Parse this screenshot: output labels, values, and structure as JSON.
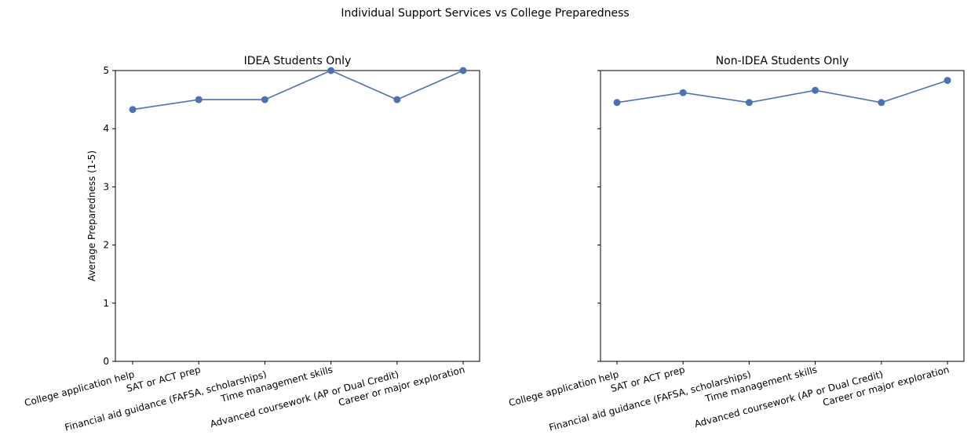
{
  "figure": {
    "title": "Individual Support Services vs College Preparedness"
  },
  "chart_data": [
    {
      "type": "line",
      "title": "IDEA Students Only",
      "xlabel": "",
      "ylabel": "Average Preparedness (1-5)",
      "ylim": [
        0,
        5
      ],
      "yticks": [
        "0",
        "1",
        "2",
        "3",
        "4",
        "5"
      ],
      "categories": [
        "College application help",
        "SAT or ACT prep",
        "Financial aid guidance (FAFSA, scholarships)",
        "Time management skills",
        "Advanced coursework (AP or Dual Credit)",
        "Career or major exploration"
      ],
      "series": [
        {
          "values": [
            4.33,
            4.5,
            4.5,
            5.0,
            4.5,
            5.0
          ]
        }
      ],
      "grid": false,
      "color": "#4c72b0"
    },
    {
      "type": "line",
      "title": "Non-IDEA Students Only",
      "xlabel": "",
      "ylabel": "",
      "ylim": [
        0,
        5
      ],
      "yticks": [
        "0",
        "1",
        "2",
        "3",
        "4",
        "5"
      ],
      "categories": [
        "College application help",
        "SAT or ACT prep",
        "Financial aid guidance (FAFSA, scholarships)",
        "Time management skills",
        "Advanced coursework (AP or Dual Credit)",
        "Career or major exploration"
      ],
      "series": [
        {
          "values": [
            4.45,
            4.62,
            4.45,
            4.66,
            4.45,
            4.83
          ]
        }
      ],
      "grid": false,
      "color": "#4c72b0"
    }
  ]
}
